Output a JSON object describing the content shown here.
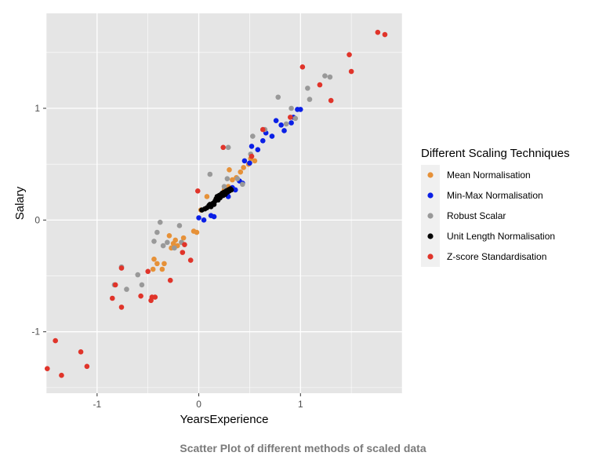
{
  "caption": "Scatter Plot of different methods of scaled data",
  "chart_data": {
    "type": "scatter",
    "xlabel": "YearsExperience",
    "ylabel": "Salary",
    "xlim": [
      -1.5,
      2.0
    ],
    "ylim": [
      -1.55,
      1.85
    ],
    "x_ticks": [
      -1,
      0,
      1
    ],
    "y_ticks": [
      -1,
      0,
      1
    ],
    "grid": true,
    "legend_title": "Different Scaling Techniques",
    "legend_position": "right",
    "series": [
      {
        "name": "Mean Normalisation",
        "color": "#e69138",
        "points": [
          [
            -0.45,
            -0.44
          ],
          [
            -0.41,
            -0.39
          ],
          [
            -0.36,
            -0.44
          ],
          [
            -0.34,
            -0.39
          ],
          [
            -0.44,
            -0.35
          ],
          [
            -0.27,
            -0.25
          ],
          [
            -0.25,
            -0.21
          ],
          [
            -0.23,
            -0.18
          ],
          [
            -0.21,
            -0.23
          ],
          [
            -0.17,
            -0.2
          ],
          [
            -0.15,
            -0.16
          ],
          [
            -0.29,
            -0.14
          ],
          [
            -0.05,
            -0.1
          ],
          [
            -0.02,
            -0.11
          ],
          [
            0.02,
            0.09
          ],
          [
            0.08,
            0.21
          ],
          [
            0.25,
            0.27
          ],
          [
            0.29,
            0.3
          ],
          [
            0.33,
            0.36
          ],
          [
            0.37,
            0.38
          ],
          [
            0.3,
            0.45
          ],
          [
            0.41,
            0.43
          ],
          [
            0.44,
            0.47
          ],
          [
            0.49,
            0.5
          ],
          [
            0.51,
            0.55
          ],
          [
            0.55,
            0.53
          ]
        ]
      },
      {
        "name": "Min-Max Normalisation",
        "color": "#0a1fe6",
        "points": [
          [
            0.0,
            0.02
          ],
          [
            0.05,
            0.0
          ],
          [
            0.12,
            0.04
          ],
          [
            0.15,
            0.03
          ],
          [
            0.23,
            0.22
          ],
          [
            0.28,
            0.24
          ],
          [
            0.29,
            0.21
          ],
          [
            0.33,
            0.29
          ],
          [
            0.36,
            0.27
          ],
          [
            0.4,
            0.35
          ],
          [
            0.43,
            0.33
          ],
          [
            0.45,
            0.53
          ],
          [
            0.5,
            0.51
          ],
          [
            0.52,
            0.66
          ],
          [
            0.58,
            0.63
          ],
          [
            0.63,
            0.71
          ],
          [
            0.66,
            0.78
          ],
          [
            0.72,
            0.75
          ],
          [
            0.76,
            0.89
          ],
          [
            0.81,
            0.85
          ],
          [
            0.84,
            0.8
          ],
          [
            0.91,
            0.87
          ],
          [
            0.93,
            0.92
          ],
          [
            0.97,
            0.99
          ],
          [
            1.0,
            0.99
          ]
        ]
      },
      {
        "name": "Robust Scalar",
        "color": "#999999",
        "points": [
          [
            -0.83,
            -0.58
          ],
          [
            -0.76,
            -0.42
          ],
          [
            -0.71,
            -0.62
          ],
          [
            -0.6,
            -0.49
          ],
          [
            -0.56,
            -0.58
          ],
          [
            -0.44,
            -0.19
          ],
          [
            -0.41,
            -0.11
          ],
          [
            -0.38,
            -0.02
          ],
          [
            -0.35,
            -0.23
          ],
          [
            -0.31,
            -0.2
          ],
          [
            -0.24,
            -0.25
          ],
          [
            -0.19,
            -0.05
          ],
          [
            -0.17,
            -0.2
          ],
          [
            0.11,
            0.41
          ],
          [
            0.25,
            0.3
          ],
          [
            0.28,
            0.37
          ],
          [
            0.29,
            0.65
          ],
          [
            0.38,
            0.37
          ],
          [
            0.43,
            0.32
          ],
          [
            0.51,
            0.59
          ],
          [
            0.53,
            0.75
          ],
          [
            0.65,
            0.81
          ],
          [
            0.78,
            1.1
          ],
          [
            0.86,
            0.86
          ],
          [
            0.91,
            1.0
          ],
          [
            0.95,
            0.91
          ],
          [
            1.07,
            1.18
          ],
          [
            1.09,
            1.08
          ],
          [
            1.24,
            1.29
          ],
          [
            1.29,
            1.28
          ]
        ]
      },
      {
        "name": "Unit Length Normalisation",
        "color": "#000000",
        "points": [
          [
            0.03,
            0.09
          ],
          [
            0.06,
            0.1
          ],
          [
            0.08,
            0.11
          ],
          [
            0.1,
            0.13
          ],
          [
            0.11,
            0.14
          ],
          [
            0.12,
            0.12
          ],
          [
            0.14,
            0.15
          ],
          [
            0.15,
            0.14
          ],
          [
            0.16,
            0.17
          ],
          [
            0.17,
            0.19
          ],
          [
            0.18,
            0.21
          ],
          [
            0.19,
            0.18
          ],
          [
            0.2,
            0.22
          ],
          [
            0.21,
            0.2
          ],
          [
            0.22,
            0.23
          ],
          [
            0.23,
            0.24
          ],
          [
            0.24,
            0.22
          ],
          [
            0.25,
            0.25
          ],
          [
            0.26,
            0.23
          ],
          [
            0.27,
            0.26
          ],
          [
            0.28,
            0.25
          ],
          [
            0.29,
            0.27
          ],
          [
            0.3,
            0.26
          ],
          [
            0.31,
            0.28
          ],
          [
            0.32,
            0.27
          ]
        ]
      },
      {
        "name": "Z-score Standardisation",
        "color": "#e0342a",
        "points": [
          [
            -1.49,
            -1.33
          ],
          [
            -1.41,
            -1.08
          ],
          [
            -1.35,
            -1.39
          ],
          [
            -1.16,
            -1.18
          ],
          [
            -1.1,
            -1.31
          ],
          [
            -0.85,
            -0.7
          ],
          [
            -0.82,
            -0.58
          ],
          [
            -0.76,
            -0.43
          ],
          [
            -0.76,
            -0.78
          ],
          [
            -0.57,
            -0.68
          ],
          [
            -0.5,
            -0.46
          ],
          [
            -0.47,
            -0.72
          ],
          [
            -0.46,
            -0.69
          ],
          [
            -0.43,
            -0.69
          ],
          [
            -0.28,
            -0.54
          ],
          [
            -0.16,
            -0.29
          ],
          [
            -0.14,
            -0.22
          ],
          [
            -0.08,
            -0.36
          ],
          [
            -0.01,
            0.26
          ],
          [
            0.24,
            0.65
          ],
          [
            0.52,
            0.57
          ],
          [
            0.63,
            0.81
          ],
          [
            0.9,
            0.92
          ],
          [
            1.02,
            1.37
          ],
          [
            1.19,
            1.21
          ],
          [
            1.3,
            1.07
          ],
          [
            1.48,
            1.48
          ],
          [
            1.5,
            1.33
          ],
          [
            1.76,
            1.68
          ],
          [
            1.83,
            1.66
          ]
        ]
      }
    ]
  }
}
